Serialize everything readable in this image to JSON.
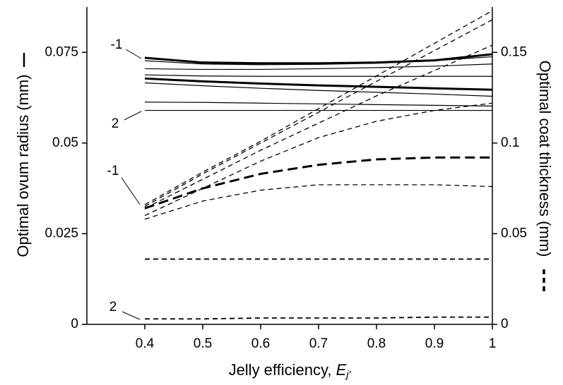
{
  "chart_data": {
    "type": "line",
    "x_label": {
      "text": "Jelly efficiency, ",
      "var": "E",
      "sub": "j′"
    },
    "y_label": "Optimal ovum radius (mm)",
    "y2_label": "Optimal coat thickness (mm)",
    "x": [
      0.4,
      0.5,
      0.6,
      0.7,
      0.8,
      0.9,
      1
    ],
    "xlim": [
      0.3,
      1
    ],
    "xticks": [
      0.4,
      0.5,
      0.6,
      0.7,
      0.8,
      0.9,
      1
    ],
    "ylim": [
      0,
      0.0875
    ],
    "yticks": [
      0,
      0.025,
      0.05,
      0.075
    ],
    "y2lim": [
      0,
      0.175
    ],
    "y2ticks": [
      0,
      0.05,
      0.1,
      0.15
    ],
    "annotations": [
      "-1",
      "2",
      "-1",
      "2"
    ],
    "series": [
      {
        "color": "#000",
        "width": 3,
        "dash": "none",
        "axis": "y",
        "values": [
          0.0735,
          0.0722,
          0.072,
          0.072,
          0.0722,
          0.0728,
          0.0745
        ]
      },
      {
        "color": "#000",
        "width": 1.2,
        "dash": "none",
        "axis": "y",
        "values": [
          0.0727,
          0.0718,
          0.0716,
          0.0717,
          0.072,
          0.0727,
          0.0738
        ]
      },
      {
        "color": "#000",
        "width": 1.2,
        "dash": "none",
        "axis": "y",
        "values": [
          0.0705,
          0.0703,
          0.0703,
          0.0705,
          0.0708,
          0.0712,
          0.0718
        ]
      },
      {
        "color": "#000",
        "width": 1.2,
        "dash": "none",
        "axis": "y",
        "values": [
          0.0688,
          0.0685,
          0.0684,
          0.0684,
          0.0684,
          0.0684,
          0.0684
        ]
      },
      {
        "color": "#000",
        "width": 3,
        "dash": "none",
        "axis": "y",
        "values": [
          0.0678,
          0.067,
          0.0664,
          0.0659,
          0.0655,
          0.0651,
          0.0647
        ]
      },
      {
        "color": "#000",
        "width": 1.2,
        "dash": "none",
        "axis": "y",
        "values": [
          0.0666,
          0.0658,
          0.0651,
          0.0645,
          0.064,
          0.0635,
          0.0629
        ]
      },
      {
        "color": "#000",
        "width": 1.2,
        "dash": "none",
        "axis": "y",
        "values": [
          0.0613,
          0.0612,
          0.061,
          0.0608,
          0.0606,
          0.0604,
          0.0602
        ]
      },
      {
        "color": "#000",
        "width": 1.2,
        "dash": "none",
        "axis": "y",
        "values": [
          0.059,
          0.059,
          0.059,
          0.059,
          0.059,
          0.059,
          0.059
        ]
      },
      {
        "color": "#000",
        "width": 1.3,
        "dash": "7 5",
        "axis": "y2",
        "values": [
          0.066,
          0.084,
          0.101,
          0.119,
          0.137,
          0.155,
          0.173
        ]
      },
      {
        "color": "#000",
        "width": 1.3,
        "dash": "7 5",
        "axis": "y2",
        "values": [
          0.065,
          0.083,
          0.1,
          0.117,
          0.134,
          0.151,
          0.168
        ]
      },
      {
        "color": "#000",
        "width": 1.3,
        "dash": "7 5",
        "axis": "y2",
        "values": [
          0.064,
          0.08,
          0.096,
          0.111,
          0.126,
          0.14,
          0.154
        ]
      },
      {
        "color": "#000",
        "width": 1.3,
        "dash": "7 5",
        "axis": "y2",
        "values": [
          0.06,
          0.075,
          0.09,
          0.103,
          0.112,
          0.118,
          0.122
        ]
      },
      {
        "color": "#000",
        "width": 3,
        "dash": "14 7",
        "axis": "y2",
        "values": [
          0.064,
          0.075,
          0.083,
          0.088,
          0.091,
          0.092,
          0.092
        ]
      },
      {
        "color": "#000",
        "width": 1.3,
        "dash": "7 5",
        "axis": "y2",
        "values": [
          0.058,
          0.068,
          0.074,
          0.077,
          0.077,
          0.077,
          0.076
        ]
      },
      {
        "color": "#000",
        "width": 1.8,
        "dash": "7 5",
        "axis": "y2",
        "values": [
          0.036,
          0.036,
          0.036,
          0.036,
          0.036,
          0.036,
          0.036
        ]
      },
      {
        "color": "#000",
        "width": 1.8,
        "dash": "7 5",
        "axis": "y2",
        "values": [
          0.003,
          0.003,
          0.0035,
          0.0035,
          0.0035,
          0.004,
          0.004
        ]
      }
    ]
  }
}
